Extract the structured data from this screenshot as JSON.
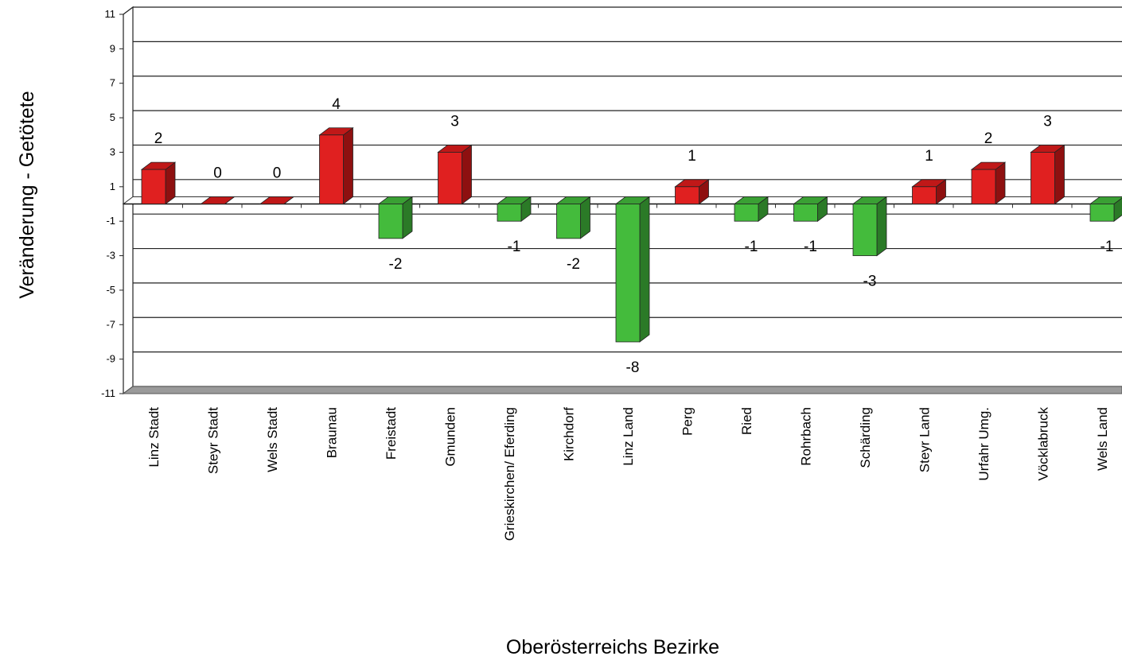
{
  "chart_data": {
    "type": "bar",
    "xlabel": "Oberösterreichs Bezirke",
    "ylabel": "Veränderung - Getötete",
    "ylim": [
      -11,
      11
    ],
    "yticks": [
      11,
      9,
      7,
      5,
      3,
      1,
      -1,
      -3,
      -5,
      -7,
      -9,
      -11
    ],
    "grid": true,
    "categories": [
      "Linz Stadt",
      "Steyr Stadt",
      "Wels Stadt",
      "Braunau",
      "Freistadt",
      "Gmunden",
      "Grieskirchen/ Eferding",
      "Kirchdorf",
      "Linz Land",
      "Perg",
      "Ried",
      "Rohrbach",
      "Schärding",
      "Steyr Land",
      "Urfahr Umg.",
      "Vöcklabruck",
      "Wels Land"
    ],
    "values": [
      2,
      0,
      0,
      4,
      -2,
      3,
      -1,
      -2,
      -8,
      1,
      -1,
      -1,
      -3,
      1,
      2,
      3,
      -1
    ],
    "colors": {
      "positive": "#e02020",
      "positive_top": "#c01818",
      "positive_side": "#8e1010",
      "negative": "#44bb3c",
      "negative_top": "#3aa034",
      "negative_side": "#2b7a27"
    }
  }
}
